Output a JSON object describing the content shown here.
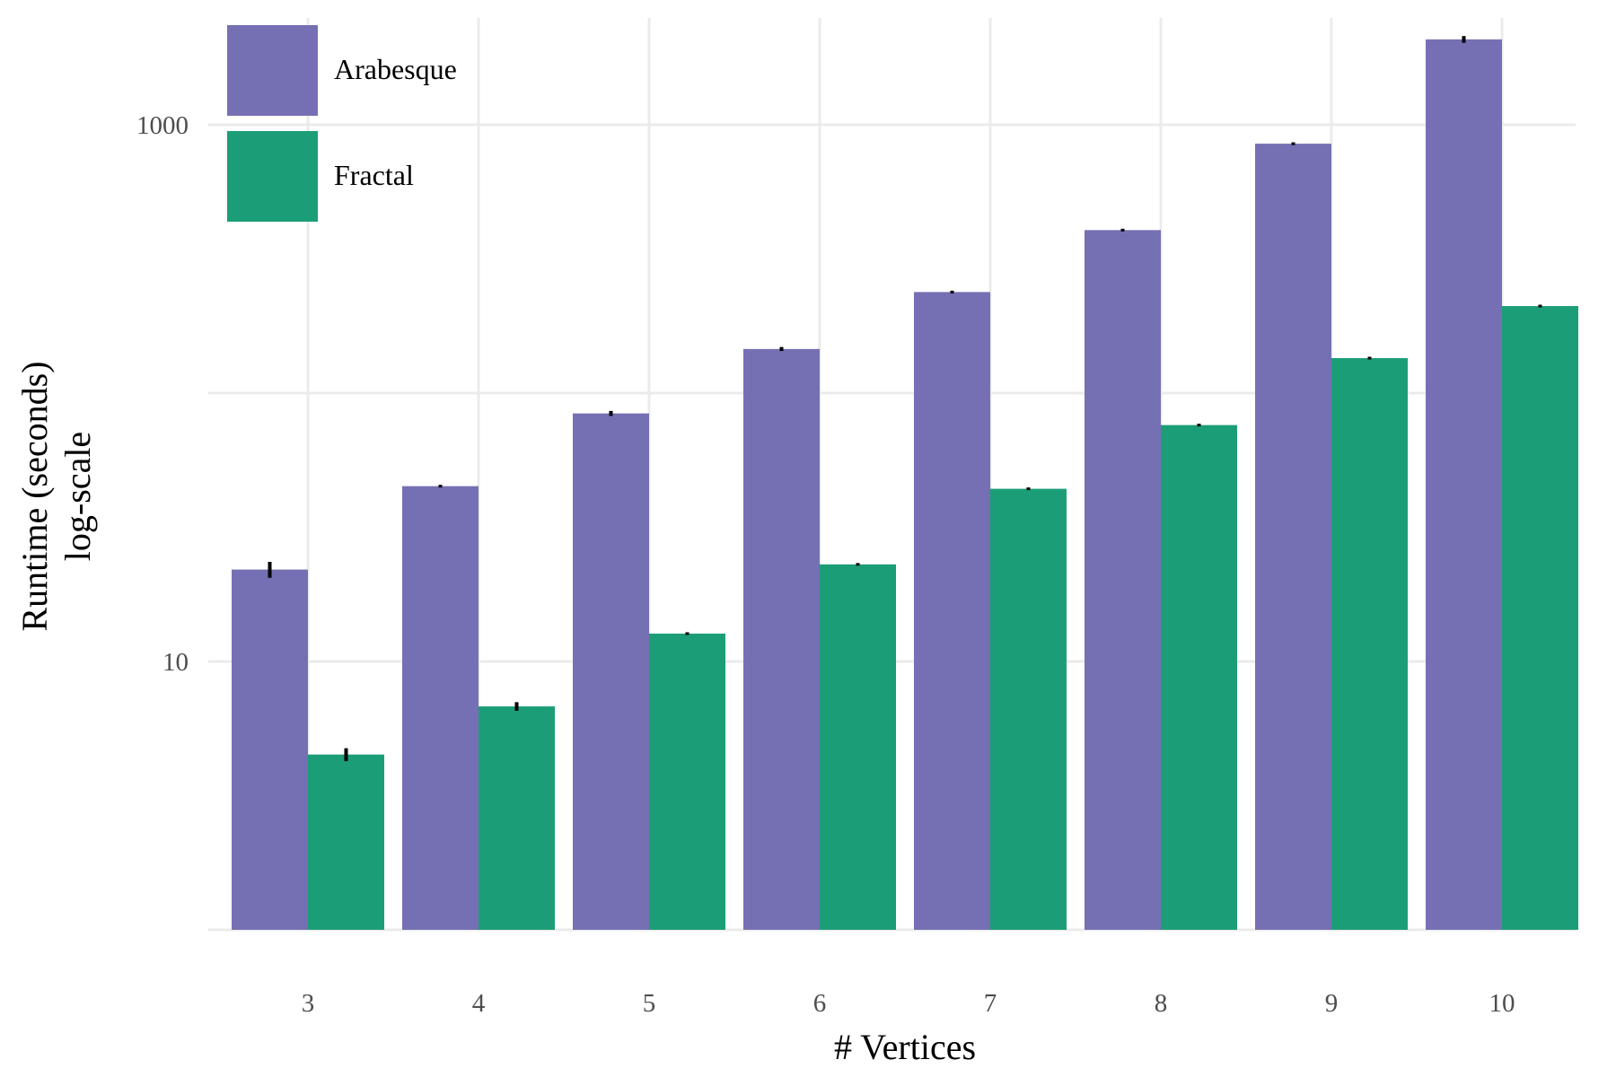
{
  "chart_data": {
    "type": "bar",
    "xlabel": "# Vertices",
    "ylabel_lines": [
      "Runtime (seconds)",
      "log-scale"
    ],
    "y_scale": "log10",
    "ylim": [
      1,
      2500
    ],
    "yticks": [
      10,
      1000
    ],
    "ytick_labels": [
      "10",
      "1000"
    ],
    "categories": [
      "3",
      "4",
      "5",
      "6",
      "7",
      "8",
      "9",
      "10"
    ],
    "legend_position": "top-left",
    "grid": true,
    "series": [
      {
        "name": "Arabesque",
        "color": "#7570b3",
        "values": [
          22,
          45,
          84,
          146,
          238,
          405,
          850,
          2080
        ],
        "error": [
          1.5,
          0.4,
          1.8,
          2.5,
          1.5,
          3,
          10,
          60
        ]
      },
      {
        "name": "Fractal",
        "color": "#1b9e77",
        "values": [
          4.5,
          6.8,
          12.7,
          23,
          44,
          76,
          135,
          211
        ],
        "error": [
          0.25,
          0.25,
          0.08,
          0.15,
          0.2,
          0.4,
          1,
          1
        ]
      }
    ]
  }
}
